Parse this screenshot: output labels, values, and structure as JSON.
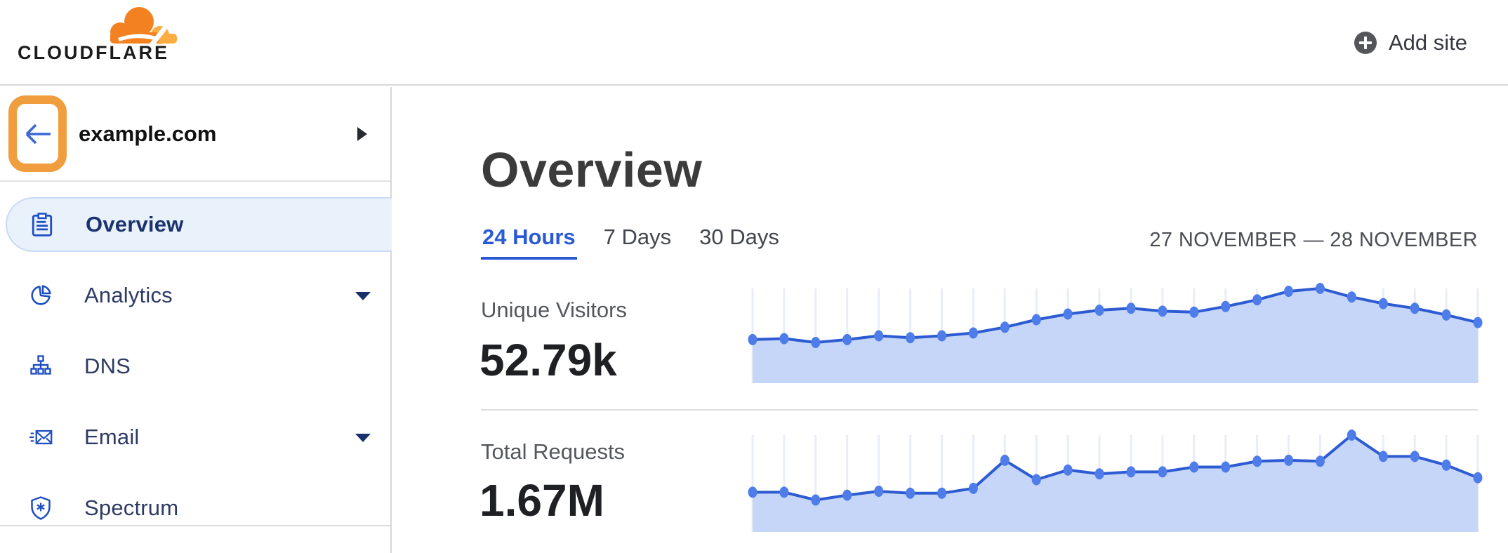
{
  "topbar": {
    "logo_text": "CLOUDFLARE",
    "add_site_label": "Add site"
  },
  "sidebar": {
    "site": {
      "name": "example.com"
    },
    "items": [
      {
        "label": "Overview",
        "icon": "clipboard-icon",
        "selected": true,
        "has_caret": false
      },
      {
        "label": "Analytics",
        "icon": "pie-chart-icon",
        "selected": false,
        "has_caret": true
      },
      {
        "label": "DNS",
        "icon": "dns-tree-icon",
        "selected": false,
        "has_caret": false
      },
      {
        "label": "Email",
        "icon": "email-icon",
        "selected": false,
        "has_caret": true
      },
      {
        "label": "Spectrum",
        "icon": "shield-icon",
        "selected": false,
        "has_caret": false
      }
    ]
  },
  "main": {
    "title": "Overview",
    "tabs": [
      {
        "label": "24 Hours",
        "active": true
      },
      {
        "label": "7 Days",
        "active": false
      },
      {
        "label": "30 Days",
        "active": false
      }
    ],
    "date_range": "27 NOVEMBER — 28 NOVEMBER",
    "metrics": [
      {
        "label": "Unique Visitors",
        "value": "52.79k"
      },
      {
        "label": "Total Requests",
        "value": "1.67M"
      }
    ]
  },
  "colors": {
    "brand_orange": "#f48120",
    "brand_orange_light": "#fbad41",
    "highlight_orange": "#f09e3d",
    "link_blue": "#2a5ad6",
    "sidebar_icon_blue": "#1e4fc2",
    "sidebar_text_navy": "#1a336e",
    "selected_item_bg": "#e9f1fb",
    "selected_item_border": "#c8daf5",
    "chart_line": "#2d5bd1",
    "chart_dot": "#4e7de9",
    "chart_fill": "#c6d6f8",
    "chart_grid": "#e9edfa",
    "divider": "#dcdcdc"
  },
  "chart_data": [
    {
      "type": "area",
      "title": "Unique Visitors",
      "display_total": "52.79k",
      "x_label": "time (hourly, 27 November — 28 November)",
      "n_points": 24,
      "axis_tick_labels_visible": false,
      "grid": "vertical-line-per-point",
      "legend": "none",
      "values_normalized_pct": [
        46,
        47,
        43,
        46,
        50,
        48,
        50,
        53,
        59,
        67,
        73,
        77,
        79,
        76,
        75,
        81,
        88,
        97,
        100,
        91,
        84,
        79,
        72,
        64
      ]
    },
    {
      "type": "area",
      "title": "Total Requests",
      "display_total": "1.67M",
      "x_label": "time (hourly, 27 November — 28 November)",
      "n_points": 24,
      "axis_tick_labels_visible": false,
      "grid": "vertical-line-per-point",
      "legend": "none",
      "values_normalized_pct": [
        41,
        41,
        33,
        38,
        42,
        40,
        40,
        45,
        74,
        54,
        64,
        60,
        62,
        62,
        67,
        67,
        73,
        74,
        73,
        100,
        78,
        78,
        69,
        56
      ]
    }
  ]
}
